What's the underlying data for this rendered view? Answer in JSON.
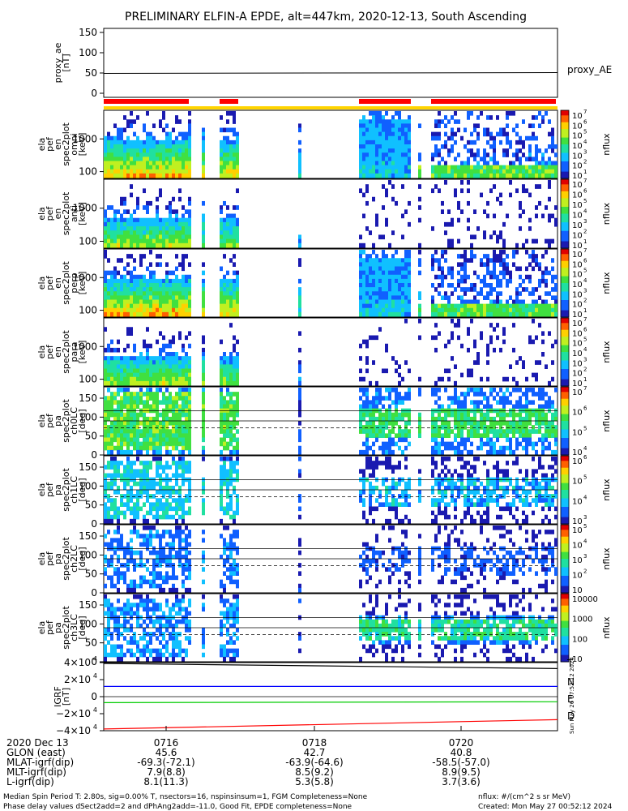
{
  "figure": {
    "title": "PRELIMINARY ELFIN-A EPDE, alt=447km, 2020-12-13, South Ascending",
    "side_label": "Sun May 26 17:52:12 2024"
  },
  "chart_data": {
    "type": "heatmap",
    "time_axis": {
      "major_ticks": [
        "0716",
        "0718",
        "0720"
      ]
    },
    "panels": [
      {
        "id": "proxy_ae",
        "type": "line",
        "ylabel": [
          "proxy_ae",
          "[nT]"
        ],
        "yticks": [
          "150",
          "100",
          "50",
          "0"
        ],
        "ylim": [
          -10,
          160
        ],
        "legend": "proxy_AE",
        "series": [
          {
            "values_start": 49,
            "values_end": 51,
            "color": "#000000"
          }
        ]
      },
      {
        "id": "pef_en_omni",
        "type": "heatmap",
        "ylabel": [
          "ela",
          "pef",
          "en",
          "spec2plot",
          "omni",
          "[keV]"
        ],
        "yticks": [
          "1000",
          "100"
        ],
        "colorbar": {
          "label": "nflux",
          "ticks": [
            "10",
            "10",
            "10",
            "10",
            "10",
            "10",
            "10"
          ],
          "exponents": [
            "7",
            "6",
            "5",
            "4",
            "3",
            "2",
            "1"
          ]
        }
      },
      {
        "id": "pef_en_anti",
        "type": "heatmap",
        "ylabel": [
          "ela",
          "pef",
          "en",
          "spec2plot",
          "anti",
          "[keV]"
        ],
        "yticks": [
          "1000",
          "100"
        ],
        "colorbar": {
          "label": "nflux",
          "ticks": [
            "10",
            "10",
            "10",
            "10",
            "10",
            "10",
            "10"
          ],
          "exponents": [
            "7",
            "6",
            "5",
            "4",
            "3",
            "2",
            "1"
          ]
        }
      },
      {
        "id": "pef_en_perp",
        "type": "heatmap",
        "ylabel": [
          "ela",
          "pef",
          "en",
          "spec2plot",
          "perp",
          "[keV]"
        ],
        "yticks": [
          "1000",
          "100"
        ],
        "colorbar": {
          "label": "nflux",
          "ticks": [
            "10",
            "10",
            "10",
            "10",
            "10",
            "10",
            "10"
          ],
          "exponents": [
            "7",
            "6",
            "5",
            "4",
            "3",
            "2",
            "1"
          ]
        }
      },
      {
        "id": "pef_en_para",
        "type": "heatmap",
        "ylabel": [
          "ela",
          "pef",
          "en",
          "spec2plot",
          "para",
          "[keV]"
        ],
        "yticks": [
          "1000",
          "100"
        ],
        "colorbar": {
          "label": "nflux",
          "ticks": [
            "10",
            "10",
            "10",
            "10",
            "10",
            "10",
            "10"
          ],
          "exponents": [
            "7",
            "6",
            "5",
            "4",
            "3",
            "2",
            "1"
          ]
        }
      },
      {
        "id": "pef_pa_ch0LC",
        "type": "heatmap",
        "ylabel": [
          "ela",
          "pef",
          "pa",
          "spec2plot",
          "ch0LC",
          "[deg]"
        ],
        "yticks": [
          "150",
          "100",
          "50",
          "0"
        ],
        "colorbar": {
          "label": "nflux",
          "ticks": [
            "10",
            "10",
            "10",
            "10"
          ],
          "exponents": [
            "7",
            "6",
            "5",
            "4"
          ]
        }
      },
      {
        "id": "pef_pa_ch1LC",
        "type": "heatmap",
        "ylabel": [
          "ela",
          "pef",
          "pa",
          "spec2plot",
          "ch1LC",
          "[deg]"
        ],
        "yticks": [
          "150",
          "100",
          "50",
          "0"
        ],
        "colorbar": {
          "label": "nflux",
          "ticks": [
            "10",
            "10",
            "10",
            "10"
          ],
          "exponents": [
            "6",
            "5",
            "4",
            "3"
          ]
        }
      },
      {
        "id": "pef_pa_ch2LC",
        "type": "heatmap",
        "ylabel": [
          "ela",
          "pef",
          "pa",
          "spec2plot",
          "ch2LC",
          "[deg]"
        ],
        "yticks": [
          "150",
          "100",
          "50",
          "0"
        ],
        "colorbar": {
          "label": "nflux",
          "ticks": [
            "10",
            "10",
            "10",
            "10",
            "10"
          ],
          "exponents": [
            "5",
            "4",
            "3",
            "2",
            ""
          ]
        }
      },
      {
        "id": "pef_pa_ch3LC",
        "type": "heatmap",
        "ylabel": [
          "ela",
          "pef",
          "pa",
          "spec2plot",
          "ch3LC",
          "[deg]"
        ],
        "yticks": [
          "150",
          "100",
          "50",
          "0"
        ],
        "colorbar": {
          "label": "nflux",
          "ticks": [
            "10000",
            "1000",
            "100",
            "10"
          ],
          "exponents": [
            "",
            "",
            "",
            ""
          ]
        }
      },
      {
        "id": "igrf",
        "type": "line",
        "ylabel": [
          "IGRF",
          "[nT]"
        ],
        "yticks": [
          "4×10",
          "2×10",
          "0",
          "−2×10",
          "−4×10"
        ],
        "ytick_exponents": [
          "4",
          "4",
          "",
          "4",
          "4"
        ],
        "ylim": [
          -40000,
          40000
        ],
        "legend": [
          {
            "name": "T",
            "color": "#000000"
          },
          {
            "name": "N",
            "color": "#0000ff"
          },
          {
            "name": "E",
            "color": "#00cc00"
          },
          {
            "name": "D",
            "color": "#ff0000"
          }
        ],
        "series": [
          {
            "name": "T",
            "color": "#000000",
            "start": 39000,
            "end": 33000
          },
          {
            "name": "N",
            "color": "#0000ff",
            "start": 12000,
            "end": 12000
          },
          {
            "name": "E",
            "color": "#00cc00",
            "start": -7000,
            "end": -6000
          },
          {
            "name": "D",
            "color": "#ff0000",
            "start": -38000,
            "end": -27000
          }
        ]
      }
    ]
  },
  "ephemeris": {
    "rows": [
      {
        "label": "2020 Dec 13",
        "values": [
          "0716",
          "0718",
          "0720"
        ]
      },
      {
        "label": "GLON (east)",
        "values": [
          "45.6",
          "42.7",
          "40.8"
        ]
      },
      {
        "label": "MLAT-igrf(dip)",
        "values": [
          "-69.3(-72.1)",
          "-63.9(-64.6)",
          "-58.5(-57.0)"
        ]
      },
      {
        "label": "MLT-igrf(dip)",
        "values": [
          "7.9(8.8)",
          "8.5(9.2)",
          "8.9(9.5)"
        ]
      },
      {
        "label": "L-igrf(dip)",
        "values": [
          "8.1(11.3)",
          "5.3(5.8)",
          "3.7(3.6)"
        ]
      }
    ]
  },
  "footer": {
    "line1": "Median Spin Period T: 2.80s, sig=0.00% T, nsectors=16, nspinsinsum=1, FGM Completeness=None",
    "line2": "Phase delay values dSect2add=2 and dPhAng2add=-11.0, Good Fit, EPDE completeness=None",
    "units": "nflux: #/(cm^2 s sr MeV)",
    "created": "Created: Mon May 27 00:52:12 2024"
  },
  "colors": {
    "bar_red": "#ff0000",
    "bar_yellow": "#ffd400"
  }
}
